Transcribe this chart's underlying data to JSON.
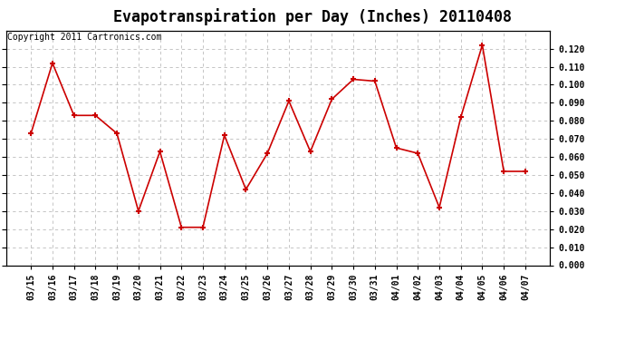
{
  "title": "Evapotranspiration per Day (Inches) 20110408",
  "copyright": "Copyright 2011 Cartronics.com",
  "dates": [
    "03/15",
    "03/16",
    "03/17",
    "03/18",
    "03/19",
    "03/20",
    "03/21",
    "03/22",
    "03/23",
    "03/24",
    "03/25",
    "03/26",
    "03/27",
    "03/28",
    "03/29",
    "03/30",
    "03/31",
    "04/01",
    "04/02",
    "04/03",
    "04/04",
    "04/05",
    "04/06",
    "04/07"
  ],
  "values": [
    0.073,
    0.112,
    0.083,
    0.083,
    0.073,
    0.03,
    0.063,
    0.021,
    0.021,
    0.072,
    0.042,
    0.062,
    0.091,
    0.063,
    0.092,
    0.103,
    0.102,
    0.065,
    0.062,
    0.032,
    0.082,
    0.122,
    0.052,
    0.052
  ],
  "line_color": "#cc0000",
  "marker": "+",
  "marker_size": 5,
  "marker_linewidth": 1.5,
  "line_width": 1.2,
  "ylim": [
    0.0,
    0.13
  ],
  "yticks": [
    0.0,
    0.01,
    0.02,
    0.03,
    0.04,
    0.05,
    0.06,
    0.07,
    0.08,
    0.09,
    0.1,
    0.11,
    0.12
  ],
  "bg_color": "#ffffff",
  "grid_color": "#bbbbbb",
  "title_fontsize": 12,
  "copyright_fontsize": 7,
  "tick_fontsize": 7,
  "fig_width": 6.9,
  "fig_height": 3.75,
  "dpi": 100
}
